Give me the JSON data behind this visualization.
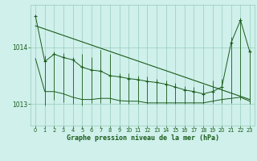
{
  "title": "Graphe pression niveau de la mer (hPa)",
  "background_color": "#cff0eb",
  "plot_background": "#cff0eb",
  "line_color": "#1a5c1a",
  "grid_color": "#99ccbb",
  "text_color": "#1a5c1a",
  "ylim": [
    1012.62,
    1014.75
  ],
  "yticks": [
    1013,
    1014
  ],
  "xlim": [
    -0.5,
    23.5
  ],
  "xticks": [
    0,
    1,
    2,
    3,
    4,
    5,
    6,
    7,
    8,
    9,
    10,
    11,
    12,
    13,
    14,
    15,
    16,
    17,
    18,
    19,
    20,
    21,
    22,
    23
  ],
  "hours": [
    0,
    1,
    2,
    3,
    4,
    5,
    6,
    7,
    8,
    9,
    10,
    11,
    12,
    13,
    14,
    15,
    16,
    17,
    18,
    19,
    20,
    21,
    22,
    23
  ],
  "p_main": [
    1014.55,
    1013.75,
    1013.88,
    1013.82,
    1013.78,
    1013.65,
    1013.6,
    1013.58,
    1013.5,
    1013.48,
    1013.45,
    1013.43,
    1013.4,
    1013.38,
    1013.35,
    1013.3,
    1013.25,
    1013.22,
    1013.18,
    1013.22,
    1013.3,
    1014.08,
    1014.48,
    1013.92
  ],
  "p_high": [
    1014.55,
    1013.85,
    1013.92,
    1013.9,
    1013.83,
    1013.88,
    1013.82,
    1013.95,
    1013.88,
    1013.55,
    1013.55,
    1013.5,
    1013.48,
    1013.45,
    1013.42,
    1013.37,
    1013.32,
    1013.3,
    1013.35,
    1013.42,
    1013.45,
    1014.18,
    1014.52,
    1013.95
  ],
  "p_low": [
    1014.55,
    1012.98,
    1013.08,
    1013.03,
    1013.0,
    1012.98,
    1013.02,
    1013.02,
    1013.02,
    1013.0,
    1013.0,
    1013.0,
    1013.0,
    1013.0,
    1013.0,
    1013.0,
    1013.0,
    1013.0,
    1013.0,
    1013.02,
    1013.02,
    1013.02,
    1013.08,
    1013.0
  ],
  "trend_x": [
    0,
    23
  ],
  "trend_y": [
    1014.38,
    1013.08
  ],
  "smooth_y": [
    1013.8,
    1013.22,
    1013.22,
    1013.18,
    1013.12,
    1013.08,
    1013.08,
    1013.1,
    1013.1,
    1013.06,
    1013.05,
    1013.05,
    1013.02,
    1013.02,
    1013.02,
    1013.02,
    1013.02,
    1013.02,
    1013.02,
    1013.05,
    1013.08,
    1013.1,
    1013.12,
    1013.05
  ]
}
